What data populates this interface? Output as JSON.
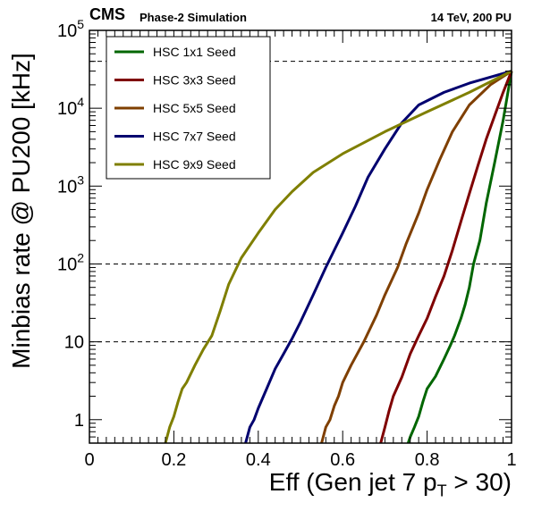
{
  "header": {
    "experiment": "CMS",
    "subtitle": "Phase-2 Simulation",
    "energy_pu": "14 TeV, 200 PU"
  },
  "chart_data": {
    "type": "line",
    "xlabel_main": "Eff (Gen jet 7 p",
    "xlabel_sub": "T",
    "xlabel_tail": " > 30)",
    "ylabel": "Minbias rate @ PU200 [kHz]",
    "xlim": [
      0,
      1
    ],
    "ylim": [
      0.5,
      100000
    ],
    "y_scale": "log",
    "x_ticks": [
      "0",
      "0.2",
      "0.4",
      "0.6",
      "0.8",
      "1"
    ],
    "y_ticks": [
      {
        "value": 1,
        "label": "1"
      },
      {
        "value": 10,
        "label": "10"
      },
      {
        "value": 100,
        "label": "10^2"
      },
      {
        "value": 1000,
        "label": "10^3"
      },
      {
        "value": 10000,
        "label": "10^4"
      },
      {
        "value": 100000,
        "label": "10^5"
      }
    ],
    "reference_lines": [
      10,
      100,
      40000
    ],
    "legend_placement": "top-left",
    "series": [
      {
        "name": "HSC 1x1 Seed",
        "color": "#006600",
        "points": [
          [
            0.755,
            0.5
          ],
          [
            0.76,
            0.6
          ],
          [
            0.77,
            0.8
          ],
          [
            0.78,
            1.1
          ],
          [
            0.79,
            1.7
          ],
          [
            0.8,
            2.5
          ],
          [
            0.82,
            3.6
          ],
          [
            0.84,
            6
          ],
          [
            0.855,
            9
          ],
          [
            0.865,
            12
          ],
          [
            0.88,
            20
          ],
          [
            0.89,
            30
          ],
          [
            0.9,
            50
          ],
          [
            0.91,
            100
          ],
          [
            0.925,
            200
          ],
          [
            0.94,
            600
          ],
          [
            0.96,
            2000
          ],
          [
            0.98,
            7000
          ],
          [
            1.0,
            30000
          ]
        ]
      },
      {
        "name": "HSC 3x3 Seed",
        "color": "#7f0000",
        "points": [
          [
            0.69,
            0.5
          ],
          [
            0.7,
            0.8
          ],
          [
            0.71,
            1.3
          ],
          [
            0.72,
            2
          ],
          [
            0.74,
            3.5
          ],
          [
            0.76,
            7
          ],
          [
            0.78,
            12
          ],
          [
            0.8,
            20
          ],
          [
            0.82,
            38
          ],
          [
            0.84,
            70
          ],
          [
            0.86,
            150
          ],
          [
            0.88,
            350
          ],
          [
            0.9,
            800
          ],
          [
            0.92,
            1800
          ],
          [
            0.94,
            4000
          ],
          [
            0.96,
            8000
          ],
          [
            0.98,
            16000
          ],
          [
            1.0,
            30000
          ]
        ]
      },
      {
        "name": "HSC 5x5 Seed",
        "color": "#7f3f00",
        "points": [
          [
            0.55,
            0.5
          ],
          [
            0.56,
            0.8
          ],
          [
            0.57,
            1
          ],
          [
            0.58,
            1.5
          ],
          [
            0.59,
            2
          ],
          [
            0.6,
            3
          ],
          [
            0.62,
            5
          ],
          [
            0.65,
            10
          ],
          [
            0.68,
            22
          ],
          [
            0.7,
            40
          ],
          [
            0.73,
            90
          ],
          [
            0.75,
            180
          ],
          [
            0.78,
            450
          ],
          [
            0.8,
            900
          ],
          [
            0.83,
            2200
          ],
          [
            0.86,
            5000
          ],
          [
            0.9,
            11000
          ],
          [
            0.95,
            20000
          ],
          [
            1.0,
            30000
          ]
        ]
      },
      {
        "name": "HSC 7x7 Seed",
        "color": "#00006f",
        "points": [
          [
            0.37,
            0.5
          ],
          [
            0.38,
            0.8
          ],
          [
            0.39,
            1
          ],
          [
            0.4,
            1.4
          ],
          [
            0.42,
            2.5
          ],
          [
            0.44,
            4.5
          ],
          [
            0.46,
            7
          ],
          [
            0.48,
            11
          ],
          [
            0.5,
            18
          ],
          [
            0.53,
            40
          ],
          [
            0.56,
            90
          ],
          [
            0.6,
            250
          ],
          [
            0.63,
            550
          ],
          [
            0.66,
            1300
          ],
          [
            0.7,
            3000
          ],
          [
            0.74,
            6500
          ],
          [
            0.78,
            11000
          ],
          [
            0.84,
            16000
          ],
          [
            0.9,
            21000
          ],
          [
            1.0,
            30000
          ]
        ]
      },
      {
        "name": "HSC 9x9 Seed",
        "color": "#7f7f00",
        "points": [
          [
            0.18,
            0.5
          ],
          [
            0.19,
            0.8
          ],
          [
            0.2,
            1.1
          ],
          [
            0.21,
            1.7
          ],
          [
            0.22,
            2.5
          ],
          [
            0.23,
            3
          ],
          [
            0.25,
            5
          ],
          [
            0.27,
            8
          ],
          [
            0.29,
            12
          ],
          [
            0.31,
            25
          ],
          [
            0.33,
            55
          ],
          [
            0.36,
            120
          ],
          [
            0.4,
            250
          ],
          [
            0.44,
            500
          ],
          [
            0.48,
            850
          ],
          [
            0.53,
            1500
          ],
          [
            0.6,
            2600
          ],
          [
            0.7,
            5000
          ],
          [
            0.8,
            9000
          ],
          [
            0.9,
            16000
          ],
          [
            1.0,
            30000
          ]
        ]
      }
    ]
  }
}
